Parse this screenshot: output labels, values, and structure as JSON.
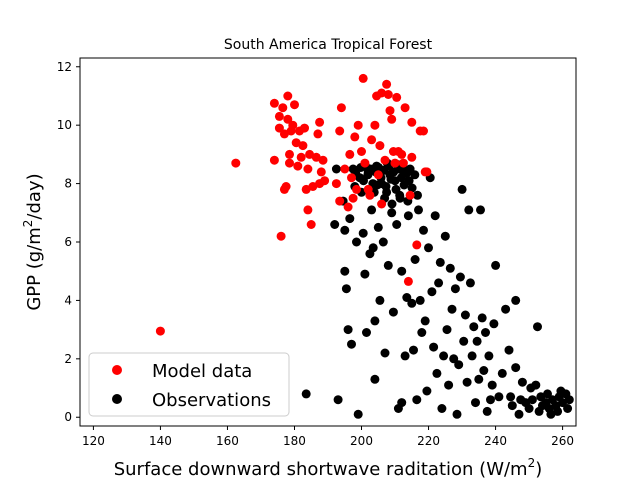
{
  "chart_data": {
    "type": "scatter",
    "title": "South America Tropical Forest",
    "xlabel": "Surface downward shortwave raditation (W/m",
    "xlabel_sup": "2",
    "xlabel_end": ")",
    "ylabel": "GPP (g/m",
    "ylabel_sup": "2",
    "ylabel_end": "/day)",
    "xlim": [
      116,
      264
    ],
    "ylim": [
      -0.3,
      12.3
    ],
    "xticks": [
      120,
      140,
      160,
      180,
      200,
      220,
      240,
      260
    ],
    "yticks": [
      0,
      2,
      4,
      6,
      8,
      10,
      12
    ],
    "legend_position": "lower-left",
    "grid": false,
    "series": [
      {
        "name": "Model data",
        "color": "#ff0000",
        "points": [
          [
            140,
            2.95
          ],
          [
            162.5,
            8.7
          ],
          [
            174,
            10.75
          ],
          [
            174,
            8.8
          ],
          [
            175.5,
            10.3
          ],
          [
            175.5,
            9.9
          ],
          [
            176,
            6.2
          ],
          [
            176.5,
            10.6
          ],
          [
            177,
            9.7
          ],
          [
            177,
            7.8
          ],
          [
            177.5,
            7.9
          ],
          [
            178,
            11.0
          ],
          [
            178,
            10.2
          ],
          [
            178.5,
            9.0
          ],
          [
            178.5,
            8.7
          ],
          [
            179,
            9.8
          ],
          [
            179.5,
            10.0
          ],
          [
            180,
            10.7
          ],
          [
            180.5,
            9.4
          ],
          [
            181,
            8.6
          ],
          [
            181.5,
            9.8
          ],
          [
            182,
            8.9
          ],
          [
            182.5,
            9.3
          ],
          [
            183,
            9.9
          ],
          [
            183.5,
            7.8
          ],
          [
            184,
            8.5
          ],
          [
            184,
            7.1
          ],
          [
            184.5,
            9.0
          ],
          [
            185,
            6.6
          ],
          [
            185.5,
            7.9
          ],
          [
            186.5,
            8.9
          ],
          [
            187,
            9.7
          ],
          [
            187.5,
            10.1
          ],
          [
            187.5,
            8.0
          ],
          [
            188,
            8.4
          ],
          [
            188.5,
            8.8
          ],
          [
            189,
            8.1
          ],
          [
            192.5,
            8.0
          ],
          [
            193.5,
            9.8
          ],
          [
            193.5,
            7.4
          ],
          [
            194,
            10.6
          ],
          [
            195,
            8.5
          ],
          [
            196,
            7.2
          ],
          [
            196.5,
            9.0
          ],
          [
            197,
            8.2
          ],
          [
            197.5,
            7.5
          ],
          [
            198,
            9.6
          ],
          [
            198.5,
            7.8
          ],
          [
            199,
            10.0
          ],
          [
            200,
            9.1
          ],
          [
            200.5,
            11.6
          ],
          [
            201,
            8.7
          ],
          [
            202,
            7.8
          ],
          [
            202.5,
            7.6
          ],
          [
            203,
            9.5
          ],
          [
            204,
            10.0
          ],
          [
            204.5,
            11.0
          ],
          [
            205,
            8.3
          ],
          [
            205.5,
            9.3
          ],
          [
            206,
            11.1
          ],
          [
            206,
            7.3
          ],
          [
            207,
            8.8
          ],
          [
            207.5,
            11.4
          ],
          [
            208,
            11.05
          ],
          [
            208.5,
            10.5
          ],
          [
            209,
            10.2
          ],
          [
            209.5,
            9.1
          ],
          [
            210,
            8.7
          ],
          [
            210.5,
            10.95
          ],
          [
            211,
            9.1
          ],
          [
            212,
            9.0
          ],
          [
            212.5,
            8.7
          ],
          [
            213,
            10.6
          ],
          [
            214,
            4.65
          ],
          [
            214.5,
            7.6
          ],
          [
            215,
            8.9
          ],
          [
            215,
            10.1
          ],
          [
            216.5,
            5.9
          ],
          [
            217.5,
            9.8
          ],
          [
            218.5,
            9.8
          ],
          [
            219,
            8.4
          ],
          [
            219.5,
            8.4
          ]
        ]
      },
      {
        "name": "Observations",
        "color": "#000000",
        "points": [
          [
            183.5,
            0.8
          ],
          [
            192,
            6.6
          ],
          [
            192.5,
            8.5
          ],
          [
            193,
            0.6
          ],
          [
            194.5,
            7.4
          ],
          [
            195,
            6.4
          ],
          [
            195,
            5.0
          ],
          [
            195.5,
            4.4
          ],
          [
            196,
            3.0
          ],
          [
            196.5,
            6.8
          ],
          [
            197,
            2.5
          ],
          [
            197.5,
            8.5
          ],
          [
            198,
            7.9
          ],
          [
            198.5,
            6.0
          ],
          [
            199,
            0.1
          ],
          [
            199.5,
            8.2
          ],
          [
            200,
            7.7
          ],
          [
            200.5,
            6.3
          ],
          [
            201,
            4.9
          ],
          [
            201.5,
            2.9
          ],
          [
            202,
            8.4
          ],
          [
            202.5,
            5.6
          ],
          [
            203,
            7.1
          ],
          [
            203.5,
            5.8
          ],
          [
            204,
            3.3
          ],
          [
            204,
            1.3
          ],
          [
            204.5,
            8.6
          ],
          [
            205,
            6.5
          ],
          [
            205.5,
            4.0
          ],
          [
            206,
            8.0
          ],
          [
            206.5,
            6.0
          ],
          [
            207,
            2.2
          ],
          [
            207.5,
            7.7
          ],
          [
            208,
            5.2
          ],
          [
            208.5,
            8.3
          ],
          [
            209,
            7.0
          ],
          [
            209.5,
            3.6
          ],
          [
            210,
            8.1
          ],
          [
            210.5,
            6.6
          ],
          [
            211,
            0.3
          ],
          [
            211.5,
            7.5
          ],
          [
            212,
            0.5
          ],
          [
            212,
            5.0
          ],
          [
            212.5,
            8.4
          ],
          [
            213,
            2.1
          ],
          [
            213.5,
            4.1
          ],
          [
            214,
            6.9
          ],
          [
            214.5,
            8.5
          ],
          [
            215,
            3.9
          ],
          [
            215.5,
            2.3
          ],
          [
            216,
            5.4
          ],
          [
            216.5,
            0.6
          ],
          [
            217,
            7.1
          ],
          [
            217.5,
            4.0
          ],
          [
            218,
            2.9
          ],
          [
            218.5,
            6.4
          ],
          [
            219,
            3.3
          ],
          [
            219.5,
            0.9
          ],
          [
            220,
            5.8
          ],
          [
            220.5,
            8.2
          ],
          [
            221,
            4.3
          ],
          [
            221.5,
            2.4
          ],
          [
            222,
            6.9
          ],
          [
            222.5,
            1.5
          ],
          [
            223,
            4.6
          ],
          [
            223.5,
            5.3
          ],
          [
            224,
            0.3
          ],
          [
            224.5,
            2.1
          ],
          [
            225,
            6.2
          ],
          [
            225.5,
            3.0
          ],
          [
            226,
            1.1
          ],
          [
            226.5,
            5.1
          ],
          [
            227,
            3.7
          ],
          [
            227.5,
            2.0
          ],
          [
            228,
            4.4
          ],
          [
            228.5,
            0.1
          ],
          [
            229,
            1.8
          ],
          [
            229.5,
            4.8
          ],
          [
            230,
            7.8
          ],
          [
            230.5,
            2.6
          ],
          [
            231,
            3.5
          ],
          [
            231.5,
            1.2
          ],
          [
            232,
            7.1
          ],
          [
            232.5,
            4.6
          ],
          [
            233,
            2.1
          ],
          [
            233.5,
            3.1
          ],
          [
            234,
            0.5
          ],
          [
            234.5,
            2.6
          ],
          [
            235,
            1.3
          ],
          [
            235.5,
            7.1
          ],
          [
            236,
            3.4
          ],
          [
            236.5,
            1.6
          ],
          [
            237,
            2.9
          ],
          [
            237.5,
            0.2
          ],
          [
            238,
            2.1
          ],
          [
            238.5,
            0.6
          ],
          [
            239,
            1.1
          ],
          [
            239.5,
            3.2
          ],
          [
            240,
            5.2
          ],
          [
            241,
            0.7
          ],
          [
            242,
            1.5
          ],
          [
            243,
            3.7
          ],
          [
            244,
            2.3
          ],
          [
            245,
            0.4
          ],
          [
            246,
            1.7
          ],
          [
            247,
            0.1
          ],
          [
            248,
            1.2
          ],
          [
            249,
            0.5
          ],
          [
            250,
            0.3
          ],
          [
            251,
            0.6
          ],
          [
            252,
            1.1
          ],
          [
            253,
            0.2
          ],
          [
            254,
            0.4
          ],
          [
            255,
            0.5
          ],
          [
            256,
            0.3
          ],
          [
            257,
            0.6
          ],
          [
            258,
            0.4
          ],
          [
            259,
            0.7
          ],
          [
            260,
            0.5
          ],
          [
            261,
            0.8
          ],
          [
            262,
            0.6
          ],
          [
            252.5,
            3.1
          ],
          [
            255.5,
            0.8
          ],
          [
            258.5,
            0.2
          ],
          [
            250.5,
            1.0
          ],
          [
            247.5,
            0.6
          ],
          [
            246,
            4.0
          ],
          [
            244.5,
            0.7
          ],
          [
            261.5,
            0.3
          ],
          [
            259.5,
            0.9
          ],
          [
            256.5,
            0.1
          ],
          [
            253.5,
            0.7
          ],
          [
            198.3,
            8.35
          ],
          [
            199.8,
            8.55
          ],
          [
            200.6,
            8.1
          ],
          [
            201.2,
            8.6
          ],
          [
            201.9,
            8.3
          ],
          [
            202.7,
            8.5
          ],
          [
            203.4,
            8.0
          ],
          [
            204.2,
            8.4
          ],
          [
            205.1,
            8.55
          ],
          [
            205.8,
            8.2
          ],
          [
            206.6,
            8.45
          ],
          [
            207.3,
            7.9
          ],
          [
            208.1,
            8.6
          ],
          [
            208.8,
            8.15
          ],
          [
            209.6,
            8.4
          ],
          [
            210.3,
            7.8
          ],
          [
            211.2,
            8.5
          ],
          [
            211.9,
            8.2
          ],
          [
            212.7,
            7.95
          ],
          [
            213.4,
            8.35
          ],
          [
            214.2,
            8.1
          ],
          [
            215.1,
            7.85
          ],
          [
            215.9,
            8.3
          ],
          [
            216.7,
            7.6
          ],
          [
            206.9,
            7.5
          ],
          [
            209.1,
            7.3
          ],
          [
            211.4,
            7.6
          ],
          [
            213.8,
            7.4
          ],
          [
            203.8,
            7.7
          ],
          [
            207.7,
            8.7
          ],
          [
            210.8,
            8.65
          ],
          [
            204.7,
            7.95
          ],
          [
            212.3,
            8.6
          ]
        ]
      }
    ]
  }
}
